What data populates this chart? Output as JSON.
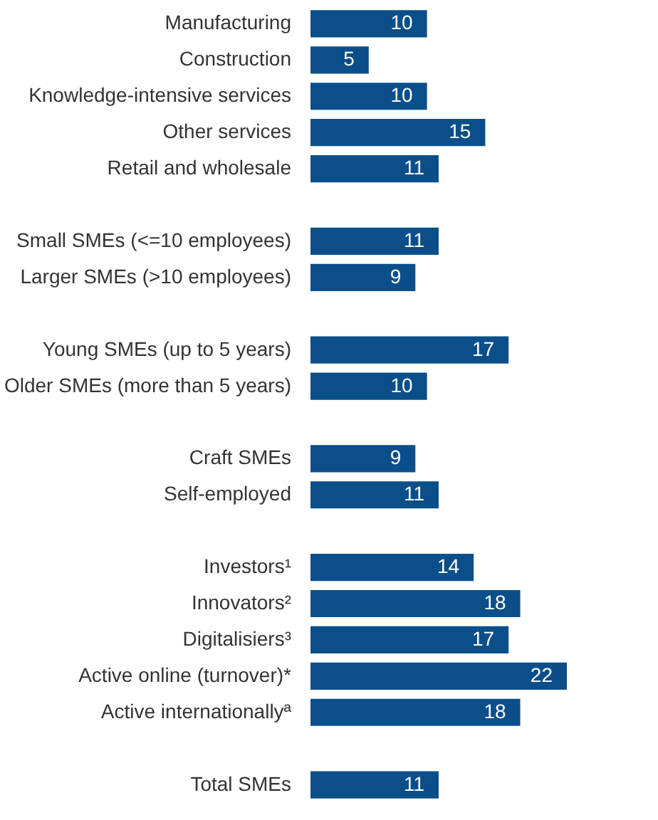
{
  "chart_data": {
    "type": "bar",
    "orientation": "horizontal",
    "categories": [
      "Manufacturing",
      "Construction",
      "Knowledge-intensive services",
      "Other services",
      "Retail and wholesale",
      null,
      "Small SMEs (<=10 employees)",
      "Larger SMEs (>10 employees)",
      null,
      "Young SMEs (up to 5 years)",
      "Older SMEs (more than 5 years)",
      null,
      "Craft SMEs",
      "Self-employed",
      null,
      "Investors¹",
      "Innovators²",
      "Digitalisiers³",
      "Active online (turnover)*",
      "Active internationallyª",
      null,
      "Total SMEs"
    ],
    "values": [
      10,
      5,
      10,
      15,
      11,
      null,
      11,
      9,
      null,
      17,
      10,
      null,
      9,
      11,
      null,
      14,
      18,
      17,
      22,
      18,
      null,
      11
    ],
    "color": "#0b4f8a",
    "data_labels": true,
    "xlim": [
      0,
      22
    ],
    "tick_labels": "y"
  }
}
